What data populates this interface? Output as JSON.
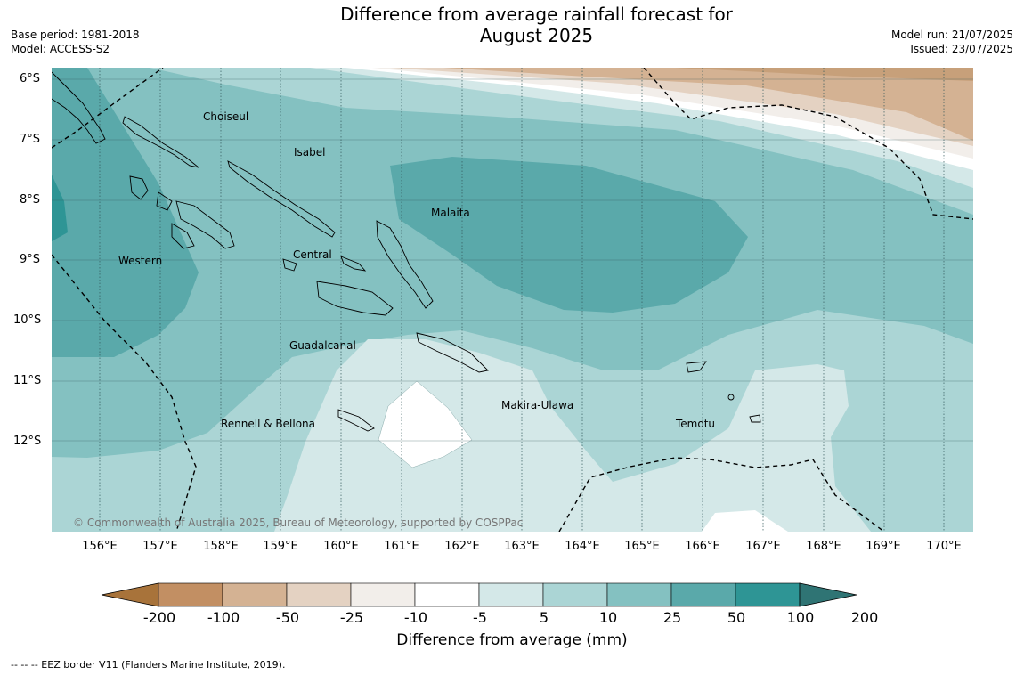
{
  "title_line1": "Difference from average rainfall forecast for",
  "title_line2": "August 2025",
  "base_period": "Base period: 1981-2018",
  "model": "Model: ACCESS-S2",
  "model_run": "Model run: 21/07/2025",
  "issued": "Issued: 23/07/2025",
  "lat_labels": [
    "6°S",
    "7°S",
    "8°S",
    "9°S",
    "10°S",
    "11°S",
    "12°S"
  ],
  "lon_labels": [
    "156°E",
    "157°E",
    "158°E",
    "159°E",
    "160°E",
    "161°E",
    "162°E",
    "163°E",
    "164°E",
    "165°E",
    "166°E",
    "167°E",
    "168°E",
    "169°E",
    "170°E"
  ],
  "places": {
    "choiseul": "Choiseul",
    "isabel": "Isabel",
    "malaita": "Malaita",
    "western": "Western",
    "central": "Central",
    "guadalcanal": "Guadalcanal",
    "makira": "Makira-Ulawa",
    "temotu": "Temotu",
    "rennell": "Rennell & Bellona"
  },
  "copyright": "© Commonwealth of Australia 2025, Bureau of Meteorology, supported by COSPPac",
  "colorbar": {
    "title": "Difference from average (mm)",
    "labels": [
      "-200",
      "-100",
      "-50",
      "-25",
      "-10",
      "-5",
      "5",
      "10",
      "25",
      "50",
      "100",
      "200"
    ],
    "colors": [
      "#a8733a",
      "#c28f63",
      "#d4b293",
      "#e4d2c2",
      "#f2eeea",
      "#ffffff",
      "#d4e8e8",
      "#abd5d5",
      "#84c1c1",
      "#5aa9aa",
      "#2e9595",
      "#2f7474"
    ]
  },
  "footer": "--  --  -- EEZ border V11 (Flanders Marine Institute, 2019)."
}
